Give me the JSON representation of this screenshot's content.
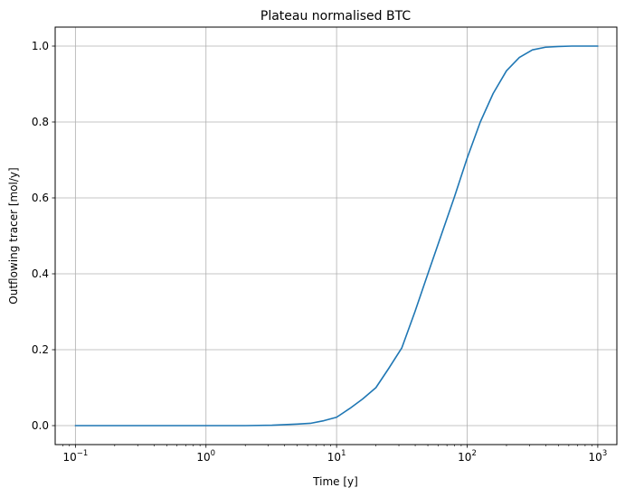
{
  "chart_data": {
    "type": "line",
    "title": "Plateau normalised BTC",
    "xlabel": "Time [y]",
    "ylabel": "Outflowing tracer [mol/y]",
    "xscale": "log",
    "xlim": [
      0.07,
      1400
    ],
    "ylim": [
      -0.05,
      1.05
    ],
    "grid": true,
    "x_ticks": [
      {
        "value": 0.1,
        "base": "10",
        "exp": "−1"
      },
      {
        "value": 1,
        "base": "10",
        "exp": "0"
      },
      {
        "value": 10,
        "base": "10",
        "exp": "1"
      },
      {
        "value": 100,
        "base": "10",
        "exp": "2"
      },
      {
        "value": 1000,
        "base": "10",
        "exp": "3"
      }
    ],
    "y_ticks": [
      {
        "value": 0.0,
        "label": "0.0"
      },
      {
        "value": 0.2,
        "label": "0.2"
      },
      {
        "value": 0.4,
        "label": "0.4"
      },
      {
        "value": 0.6,
        "label": "0.6"
      },
      {
        "value": 0.8,
        "label": "0.8"
      },
      {
        "value": 1.0,
        "label": "1.0"
      }
    ],
    "series": [
      {
        "color": "#1f77b4",
        "x": [
          0.1,
          0.5,
          1,
          2,
          3.2,
          5,
          6.3,
          8,
          10,
          12.6,
          15.8,
          20,
          25,
          31.6,
          39.8,
          50,
          63,
          79.4,
          100,
          126,
          158,
          200,
          251,
          316,
          398,
          501,
          631,
          794,
          1000
        ],
        "y": [
          0.0,
          0.0,
          0.0,
          0.0,
          0.001,
          0.004,
          0.006,
          0.013,
          0.022,
          0.045,
          0.07,
          0.1,
          0.15,
          0.205,
          0.3,
          0.4,
          0.5,
          0.6,
          0.705,
          0.8,
          0.875,
          0.935,
          0.97,
          0.99,
          0.997,
          0.999,
          1.0,
          1.0,
          1.0
        ]
      }
    ]
  }
}
